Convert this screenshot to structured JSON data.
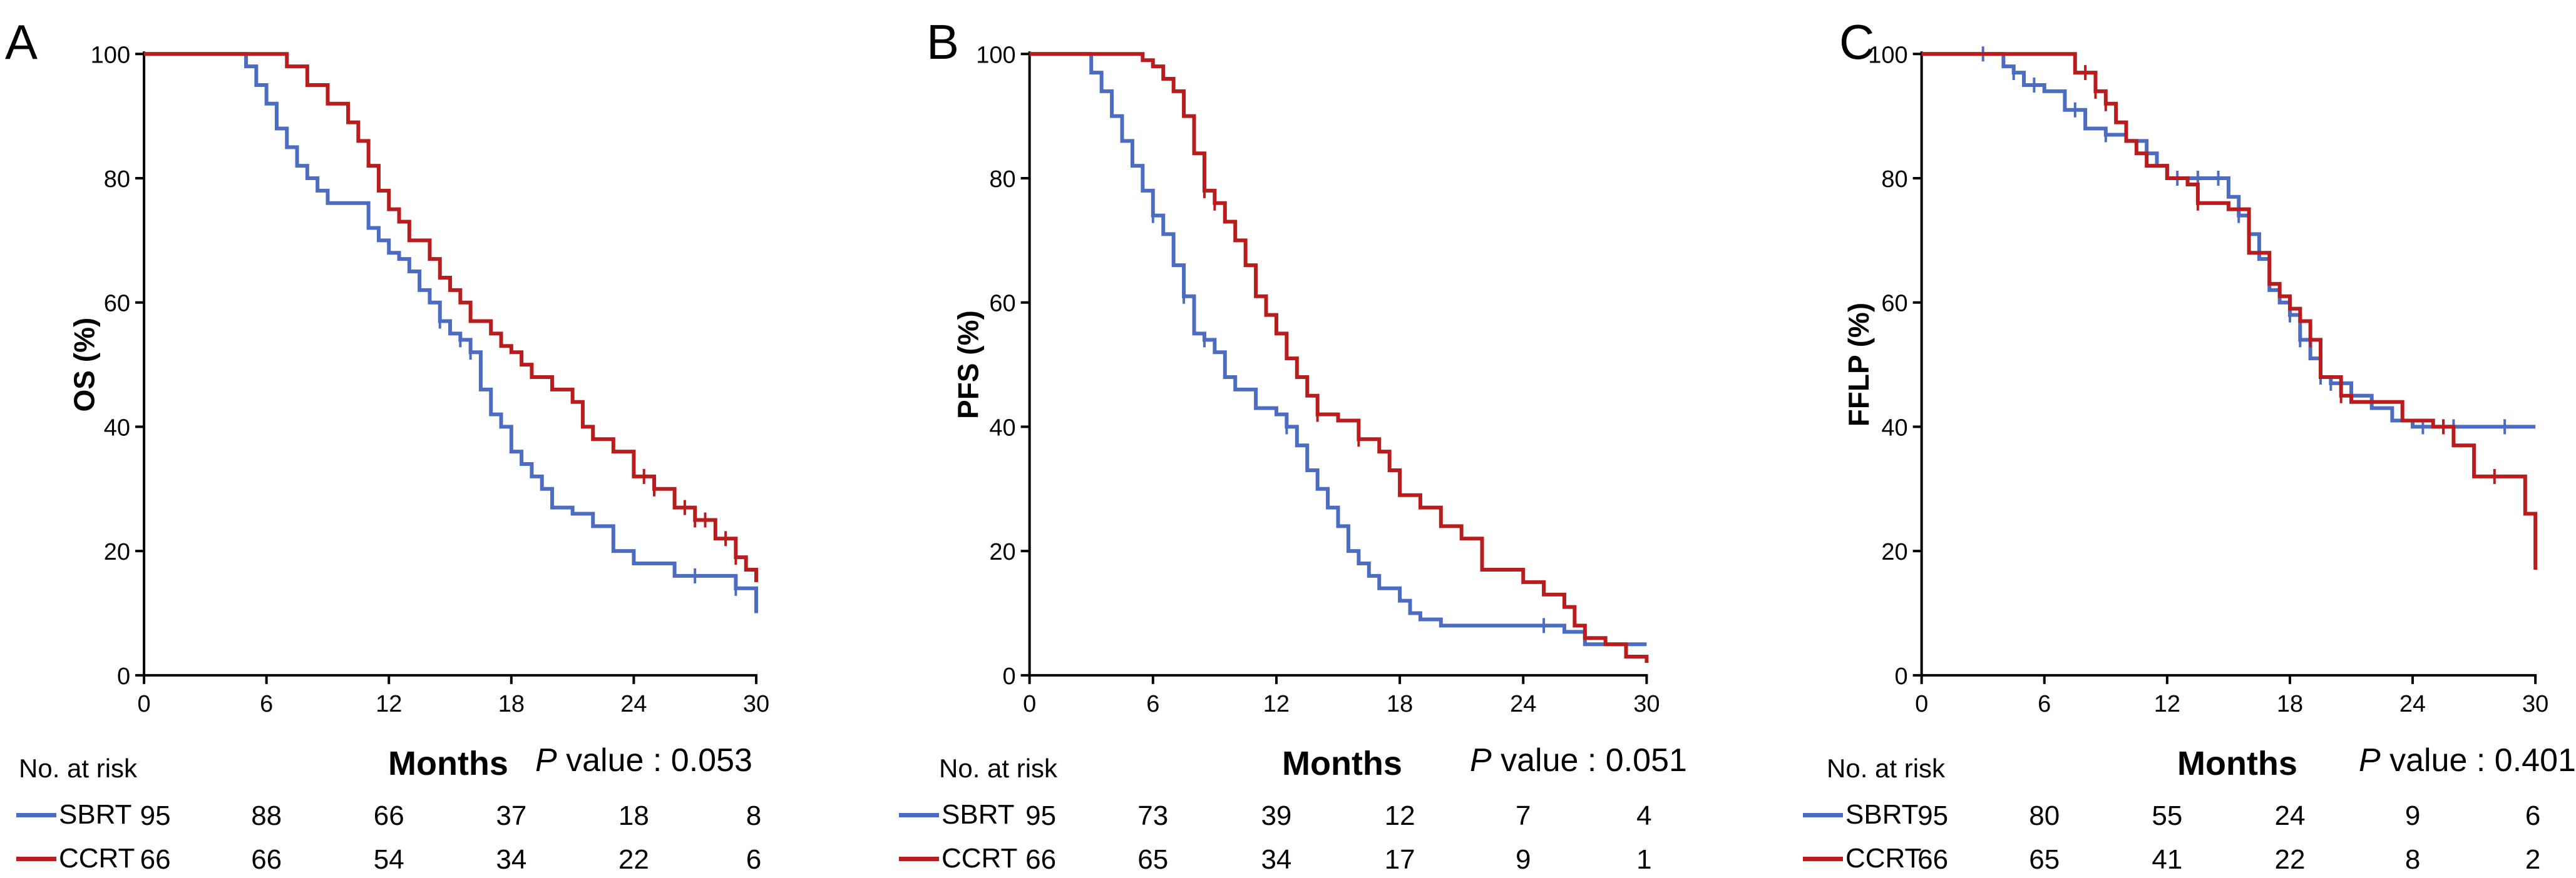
{
  "colors": {
    "sbrt": "#4B6CC1",
    "ccrt": "#B81C1C"
  },
  "common": {
    "risk_title": "No. at risk",
    "xlabel": "Months",
    "pvalue_prefix": "P",
    "pvalue_text": " value : "
  },
  "chart_data": [
    {
      "type": "line",
      "panel_letter": "A",
      "ylabel": "OS (%)",
      "xlim": [
        0,
        30
      ],
      "ylim": [
        0,
        100
      ],
      "xticks": [
        "0",
        "6",
        "12",
        "18",
        "24",
        "30"
      ],
      "yticks": [
        "0",
        "20",
        "40",
        "60",
        "80",
        "100"
      ],
      "pvalue": "0.053",
      "series": [
        {
          "name": "SBRT",
          "color_key": "sbrt",
          "x": [
            0,
            4.5,
            5.0,
            5.5,
            6.0,
            6.5,
            7.0,
            7.5,
            8.0,
            8.5,
            9.0,
            9.5,
            10.0,
            11.0,
            11.5,
            12.0,
            12.5,
            13.0,
            13.5,
            14.0,
            14.5,
            15.0,
            15.5,
            16.0,
            16.5,
            17.0,
            17.5,
            18.0,
            18.5,
            19.0,
            19.5,
            20.0,
            21.0,
            22.0,
            23.0,
            24.0,
            25.0,
            26.0,
            28.0,
            29.0,
            30.0
          ],
          "y": [
            100,
            100,
            98,
            95,
            92,
            88,
            85,
            82,
            80,
            78,
            76,
            76,
            76,
            72,
            70,
            68,
            67,
            65,
            62,
            60,
            57,
            55,
            54,
            52,
            46,
            42,
            40,
            36,
            34,
            32,
            30,
            27,
            26,
            24,
            20,
            18,
            18,
            16,
            16,
            14,
            10
          ],
          "censor_x": [
            14.5,
            15.5,
            16.0,
            27.0,
            29.0
          ]
        },
        {
          "name": "CCRT",
          "color_key": "ccrt",
          "x": [
            0,
            6.5,
            7.0,
            8.0,
            9.0,
            10.0,
            10.5,
            11.0,
            11.5,
            12.0,
            12.5,
            13.0,
            14.0,
            14.5,
            15.0,
            15.5,
            16.0,
            17.0,
            17.5,
            18.0,
            18.5,
            19.0,
            20.0,
            21.0,
            21.5,
            22.0,
            23.0,
            24.0,
            25.0,
            26.0,
            27.0,
            28.0,
            29.0,
            29.5,
            30.0
          ],
          "y": [
            100,
            100,
            98,
            95,
            92,
            89,
            86,
            82,
            78,
            75,
            73,
            70,
            67,
            64,
            62,
            60,
            57,
            55,
            53,
            52,
            50,
            48,
            46,
            44,
            40,
            38,
            36,
            32,
            30,
            27,
            25,
            22,
            19,
            17,
            15
          ],
          "censor_x": [
            24.5,
            25.0,
            26.5,
            27.0,
            27.5,
            28.5,
            29.0
          ]
        }
      ],
      "risk_rows": [
        {
          "label": "SBRT",
          "color_key": "sbrt",
          "values": [
            "95",
            "88",
            "66",
            "37",
            "18",
            "8"
          ]
        },
        {
          "label": "CCRT",
          "color_key": "ccrt",
          "values": [
            "66",
            "66",
            "54",
            "34",
            "22",
            "6"
          ]
        }
      ]
    },
    {
      "type": "line",
      "panel_letter": "B",
      "ylabel": "PFS (%)",
      "xlim": [
        0,
        30
      ],
      "ylim": [
        0,
        100
      ],
      "xticks": [
        "0",
        "6",
        "12",
        "18",
        "24",
        "30"
      ],
      "yticks": [
        "0",
        "20",
        "40",
        "60",
        "80",
        "100"
      ],
      "pvalue": "0.051",
      "series": [
        {
          "name": "SBRT",
          "color_key": "sbrt",
          "x": [
            0,
            2.5,
            3.0,
            3.5,
            4.0,
            4.5,
            5.0,
            5.5,
            6.0,
            6.5,
            7.0,
            7.5,
            8.0,
            8.5,
            9.0,
            9.5,
            10.0,
            11.0,
            12.0,
            12.5,
            13.0,
            13.5,
            14.0,
            14.5,
            15.0,
            15.5,
            16.0,
            16.5,
            17.0,
            18.0,
            18.5,
            19.0,
            20.0,
            21.0,
            22.0,
            24.0,
            25.0,
            26.0,
            27.0,
            28.0,
            30.0
          ],
          "y": [
            100,
            100,
            97,
            94,
            90,
            86,
            82,
            78,
            74,
            71,
            66,
            61,
            55,
            54,
            52,
            48,
            46,
            43,
            42,
            40,
            37,
            33,
            30,
            27,
            24,
            20,
            18,
            16,
            14,
            12,
            10,
            9,
            8,
            8,
            8,
            8,
            8,
            7,
            5,
            5,
            5
          ],
          "censor_x": [
            6.0,
            7.5,
            8.5,
            12.5,
            25.0
          ]
        },
        {
          "name": "CCRT",
          "color_key": "ccrt",
          "x": [
            0,
            5.0,
            5.5,
            6.0,
            6.5,
            7.0,
            7.5,
            8.0,
            8.5,
            9.0,
            9.5,
            10.0,
            10.5,
            11.0,
            11.5,
            12.0,
            12.5,
            13.0,
            13.5,
            14.0,
            15.0,
            16.0,
            17.0,
            17.5,
            18.0,
            19.0,
            20.0,
            21.0,
            22.0,
            23.0,
            24.0,
            25.0,
            26.0,
            26.5,
            27.0,
            28.0,
            29.0,
            30.0
          ],
          "y": [
            100,
            100,
            99,
            98,
            96,
            94,
            90,
            84,
            78,
            76,
            73,
            70,
            66,
            61,
            58,
            55,
            51,
            48,
            45,
            42,
            41,
            38,
            36,
            33,
            29,
            27,
            24,
            22,
            17,
            17,
            15,
            13,
            11,
            8,
            6,
            5,
            3,
            2
          ],
          "censor_x": [
            8.5,
            9.0,
            14.0,
            16.0
          ]
        }
      ],
      "risk_rows": [
        {
          "label": "SBRT",
          "color_key": "sbrt",
          "values": [
            "95",
            "73",
            "39",
            "12",
            "7",
            "4"
          ]
        },
        {
          "label": "CCRT",
          "color_key": "ccrt",
          "values": [
            "66",
            "65",
            "34",
            "17",
            "9",
            "1"
          ]
        }
      ]
    },
    {
      "type": "line",
      "panel_letter": "C",
      "ylabel": "FFLP (%)",
      "xlim": [
        0,
        30
      ],
      "ylim": [
        0,
        100
      ],
      "xticks": [
        "0",
        "6",
        "12",
        "18",
        "24",
        "30"
      ],
      "yticks": [
        "0",
        "20",
        "40",
        "60",
        "80",
        "100"
      ],
      "pvalue": "0.401",
      "series": [
        {
          "name": "SBRT",
          "color_key": "sbrt",
          "x": [
            0,
            3.5,
            4.0,
            4.5,
            5.0,
            6.0,
            7.0,
            8.0,
            9.0,
            10.0,
            11.0,
            11.5,
            12.0,
            13.0,
            14.0,
            15.0,
            15.5,
            16.0,
            16.5,
            17.0,
            17.5,
            18.0,
            18.5,
            19.0,
            19.5,
            20.0,
            21.0,
            22.0,
            23.0,
            24.0,
            30.0
          ],
          "y": [
            100,
            100,
            98,
            97,
            95,
            94,
            91,
            88,
            87,
            86,
            84,
            82,
            80,
            80,
            80,
            77,
            74,
            71,
            67,
            62,
            60,
            58,
            54,
            51,
            48,
            47,
            45,
            43,
            41,
            40,
            40
          ],
          "censor_x": [
            3.0,
            4.5,
            5.5,
            7.5,
            9.0,
            11.0,
            12.5,
            13.5,
            14.5,
            15.5,
            18.0,
            18.5,
            19.5,
            20.0,
            24.5,
            25.5,
            26.0,
            28.5
          ]
        },
        {
          "name": "CCRT",
          "color_key": "ccrt",
          "x": [
            0,
            7.0,
            7.5,
            8.5,
            9.0,
            9.5,
            10.0,
            10.5,
            11.0,
            12.0,
            13.0,
            13.5,
            15.0,
            16.0,
            17.0,
            17.5,
            18.0,
            18.5,
            19.0,
            19.5,
            20.5,
            21.0,
            23.5,
            25.0,
            26.0,
            27.0,
            28.0,
            29.5,
            30.0
          ],
          "y": [
            100,
            100,
            97,
            94,
            92,
            89,
            86,
            84,
            82,
            80,
            79,
            76,
            75,
            68,
            63,
            61,
            59,
            57,
            54,
            48,
            45,
            44,
            41,
            40,
            37,
            32,
            32,
            26,
            17
          ],
          "censor_x": [
            8.0,
            8.5,
            9.0,
            13.5,
            19.0,
            20.5,
            25.5,
            28.0
          ]
        }
      ],
      "risk_rows": [
        {
          "label": "SBRT",
          "color_key": "sbrt",
          "values": [
            "95",
            "80",
            "55",
            "24",
            "9",
            "6"
          ]
        },
        {
          "label": "CCRT",
          "color_key": "ccrt",
          "values": [
            "66",
            "65",
            "41",
            "22",
            "8",
            "2"
          ]
        }
      ]
    }
  ]
}
